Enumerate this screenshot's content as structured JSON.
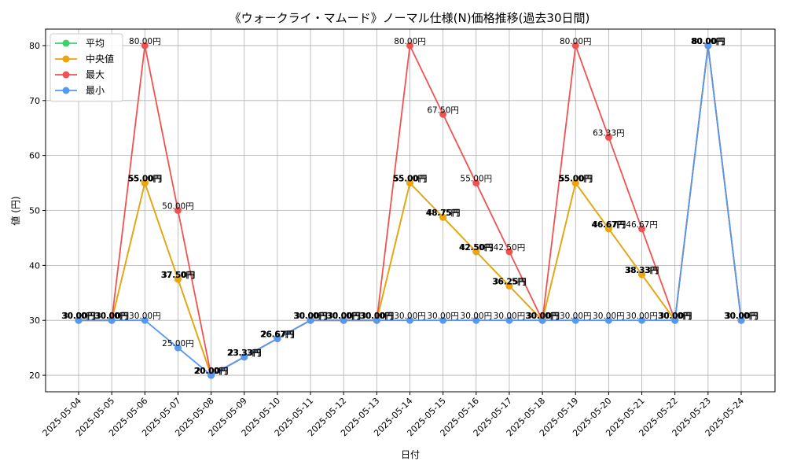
{
  "chart_data": {
    "type": "line",
    "title": "《ウォークライ・マムード》ノーマル仕様(N)価格推移(過去30日間)",
    "xlabel": "日付",
    "ylabel": "値 (円)",
    "ylim": [
      17,
      83
    ],
    "yticks": [
      20,
      30,
      40,
      50,
      60,
      70,
      80
    ],
    "grid": true,
    "legend_position": "top-left",
    "value_suffix": "円",
    "categories": [
      "2025-05-04",
      "2025-05-05",
      "2025-05-06",
      "2025-05-07",
      "2025-05-08",
      "2025-05-09",
      "2025-05-10",
      "2025-05-11",
      "2025-05-12",
      "2025-05-13",
      "2025-05-14",
      "2025-05-15",
      "2025-05-16",
      "2025-05-17",
      "2025-05-18",
      "2025-05-19",
      "2025-05-20",
      "2025-05-21",
      "2025-05-22",
      "2025-05-23",
      "2025-05-24"
    ],
    "series": [
      {
        "name": "平均",
        "color": "#3dcf6e",
        "values": [
          30,
          30,
          55,
          37.5,
          20,
          23.33,
          26.67,
          30,
          30,
          30,
          55,
          48.75,
          42.5,
          36.25,
          30,
          55,
          46.67,
          38.33,
          30,
          80,
          30
        ]
      },
      {
        "name": "中央値",
        "color": "#f0a30a",
        "values": [
          30,
          30,
          55,
          37.5,
          20,
          23.33,
          26.67,
          30,
          30,
          30,
          55,
          48.75,
          42.5,
          36.25,
          30,
          55,
          46.67,
          38.33,
          30,
          80,
          30
        ]
      },
      {
        "name": "最大",
        "color": "#f05252",
        "values": [
          30,
          30,
          80,
          50,
          20,
          23.33,
          26.67,
          30,
          30,
          30,
          80,
          67.5,
          55,
          42.5,
          30,
          80,
          63.33,
          46.67,
          30,
          80,
          30
        ]
      },
      {
        "name": "最小",
        "color": "#5599f0",
        "values": [
          30,
          30,
          30,
          25,
          20,
          23.33,
          26.67,
          30,
          30,
          30,
          30,
          30,
          30,
          30,
          30,
          30,
          30,
          30,
          30,
          80,
          30
        ]
      }
    ]
  }
}
